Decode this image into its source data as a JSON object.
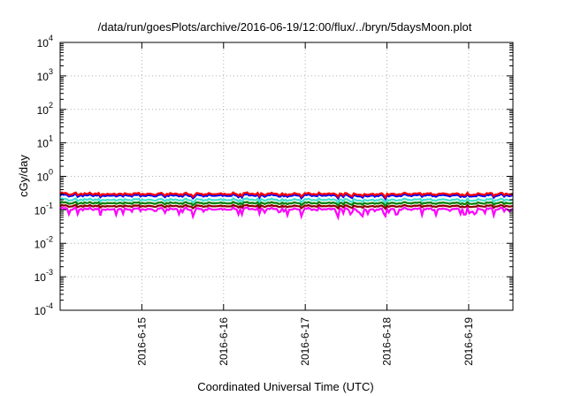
{
  "chart_data": {
    "type": "line",
    "title": "/data/run/goesPlots/archive/2016-06-19/12:00/flux/../bryn/5daysMoon.plot",
    "xlabel": "Coordinated Universal Time (UTC)",
    "ylabel": "cGy/day",
    "yscale": "log",
    "ylim": [
      0.0001,
      10000
    ],
    "xlim": [
      "2016-06-14 00:00",
      "2016-06-19 13:00"
    ],
    "grid": true,
    "x_ticks": [
      "2016-6-15",
      "2016-6-16",
      "2016-6-17",
      "2016-6-18",
      "2016-6-19"
    ],
    "y_ticks": [
      {
        "base": "10",
        "exp": "4"
      },
      {
        "base": "10",
        "exp": "3"
      },
      {
        "base": "10",
        "exp": "2"
      },
      {
        "base": "10",
        "exp": "1"
      },
      {
        "base": "10",
        "exp": "0"
      },
      {
        "base": "10",
        "exp": "-1"
      },
      {
        "base": "10",
        "exp": "-2"
      },
      {
        "base": "10",
        "exp": "-3"
      },
      {
        "base": "10",
        "exp": "-4"
      }
    ],
    "series": [
      {
        "color": "#ff00ff",
        "level": 0.105,
        "spread": 0.16,
        "dip": 0.08
      },
      {
        "color": "#8b0000",
        "level": 0.13,
        "spread": 0.1,
        "dip": 0.0
      },
      {
        "color": "#008000",
        "level": 0.16,
        "spread": 0.1,
        "dip": 0.0
      },
      {
        "color": "#40e0d0",
        "level": 0.2,
        "spread": 0.12,
        "dip": 0.0
      },
      {
        "color": "#0000ff",
        "level": 0.27,
        "spread": 0.13,
        "dip": 0.0
      },
      {
        "color": "#ff0000",
        "level": 0.3,
        "spread": 0.13,
        "dip": 0.0
      }
    ]
  }
}
